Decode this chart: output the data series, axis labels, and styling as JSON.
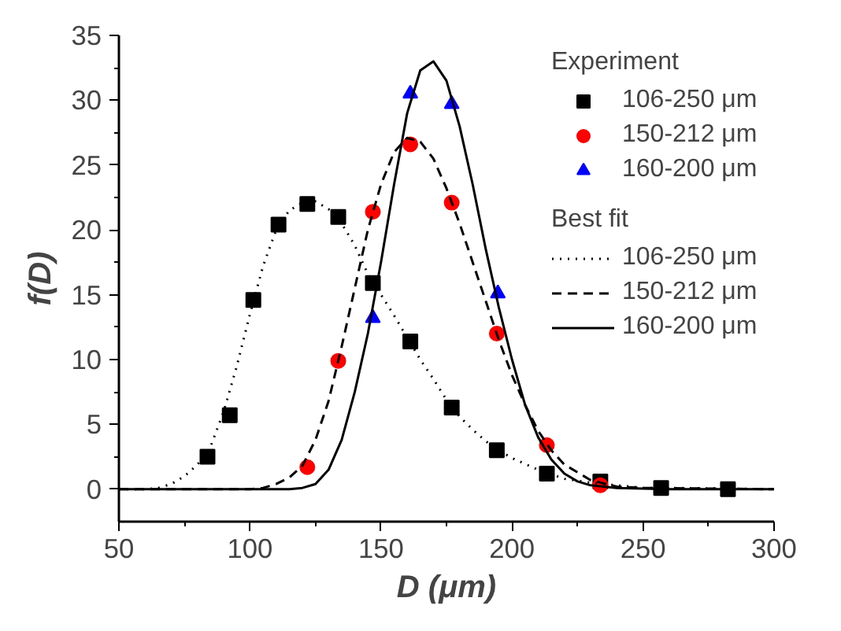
{
  "chart_data": {
    "type": "scatter",
    "xlabel": "D (μm)",
    "ylabel": "f(D)",
    "legend_title": [
      "Experiment",
      "Best fit"
    ],
    "legend": "top right",
    "grid": false,
    "xlim": [
      50,
      300
    ],
    "xticks": [
      50,
      100,
      150,
      200,
      250,
      300
    ],
    "ylim": [
      -2.5,
      35
    ],
    "yticks": [
      0,
      5,
      10,
      15,
      20,
      25,
      30,
      35
    ],
    "series": [
      {
        "name": "106-250 μm",
        "marker": "square",
        "color": "#000000",
        "x": [
          83.8,
          92.3,
          101.3,
          110.9,
          121.9,
          133.7,
          146.9,
          161.2,
          177.0,
          194.2,
          213.3,
          233.7,
          256.9,
          282.4
        ],
        "values": [
          2.5,
          5.7,
          14.6,
          20.4,
          22.0,
          21.0,
          15.9,
          11.4,
          6.3,
          3.0,
          1.2,
          0.6,
          0.1,
          0
        ]
      },
      {
        "name": "150-212 μm",
        "marker": "circle",
        "color": "#ff0000",
        "x": [
          121.9,
          133.7,
          146.9,
          161.2,
          177.0,
          194.2,
          213.3,
          233.7
        ],
        "values": [
          1.7,
          9.9,
          21.4,
          26.6,
          22.1,
          12.0,
          3.4,
          0.3
        ]
      },
      {
        "name": "160-200 μm",
        "marker": "triangle",
        "color": "#0000ff",
        "x": [
          146.9,
          161.2,
          177.0,
          194.6
        ],
        "values": [
          13.2,
          30.5,
          29.7,
          15.1
        ]
      },
      {
        "name": "106-250 μm",
        "type": "line",
        "line_style": "dotted",
        "color": "#000000",
        "x": [
          50,
          60,
          65,
          70,
          75,
          80,
          85,
          90,
          95,
          100,
          105,
          110,
          115,
          120,
          125,
          130,
          135,
          140,
          145,
          150,
          155,
          160,
          165,
          170,
          175,
          180,
          185,
          190,
          195,
          200,
          210,
          220,
          230,
          240,
          250,
          260,
          300
        ],
        "values": [
          0,
          0,
          0.1,
          0.4,
          1.0,
          1.9,
          3.3,
          6.0,
          9.5,
          13.5,
          17.2,
          20.0,
          21.5,
          22.1,
          22.2,
          21.6,
          20.5,
          18.8,
          16.6,
          15.0,
          13.4,
          11.7,
          10.0,
          8.5,
          6.9,
          5.6,
          4.6,
          3.7,
          3.0,
          2.4,
          1.5,
          0.8,
          0.5,
          0.3,
          0.1,
          0.1,
          0
        ]
      },
      {
        "name": "150-212 μm",
        "type": "line",
        "line_style": "dashed",
        "color": "#000000",
        "x": [
          50,
          100,
          105,
          110,
          115,
          120,
          125,
          130,
          135,
          140,
          145,
          150,
          155,
          160,
          165,
          170,
          175,
          180,
          185,
          190,
          195,
          200,
          205,
          210,
          215,
          220,
          230,
          240,
          250,
          300
        ],
        "values": [
          0,
          0,
          0.1,
          0.4,
          0.9,
          1.8,
          3.8,
          6.8,
          11,
          15.5,
          20,
          23.5,
          26,
          27.1,
          26.8,
          25.5,
          23.2,
          20.5,
          17.5,
          14.5,
          11.5,
          8.8,
          6.5,
          4.5,
          3,
          1.9,
          0.7,
          0.2,
          0.1,
          0
        ]
      },
      {
        "name": "160-200 μm",
        "type": "line",
        "line_style": "solid",
        "color": "#000000",
        "x": [
          50,
          100,
          115,
          120,
          125,
          130,
          135,
          140,
          145,
          150,
          155,
          160,
          165,
          170,
          175,
          180,
          185,
          190,
          195,
          200,
          205,
          210,
          215,
          220,
          225,
          230,
          240,
          260,
          300
        ],
        "values": [
          0,
          0,
          0,
          0.1,
          0.4,
          1.5,
          3.8,
          7.5,
          12,
          17.5,
          23.5,
          29,
          32.3,
          33,
          31.5,
          28,
          23.5,
          18.5,
          14,
          10,
          6.5,
          4,
          2.3,
          1.2,
          0.6,
          0.3,
          0.1,
          0,
          0
        ]
      }
    ]
  }
}
